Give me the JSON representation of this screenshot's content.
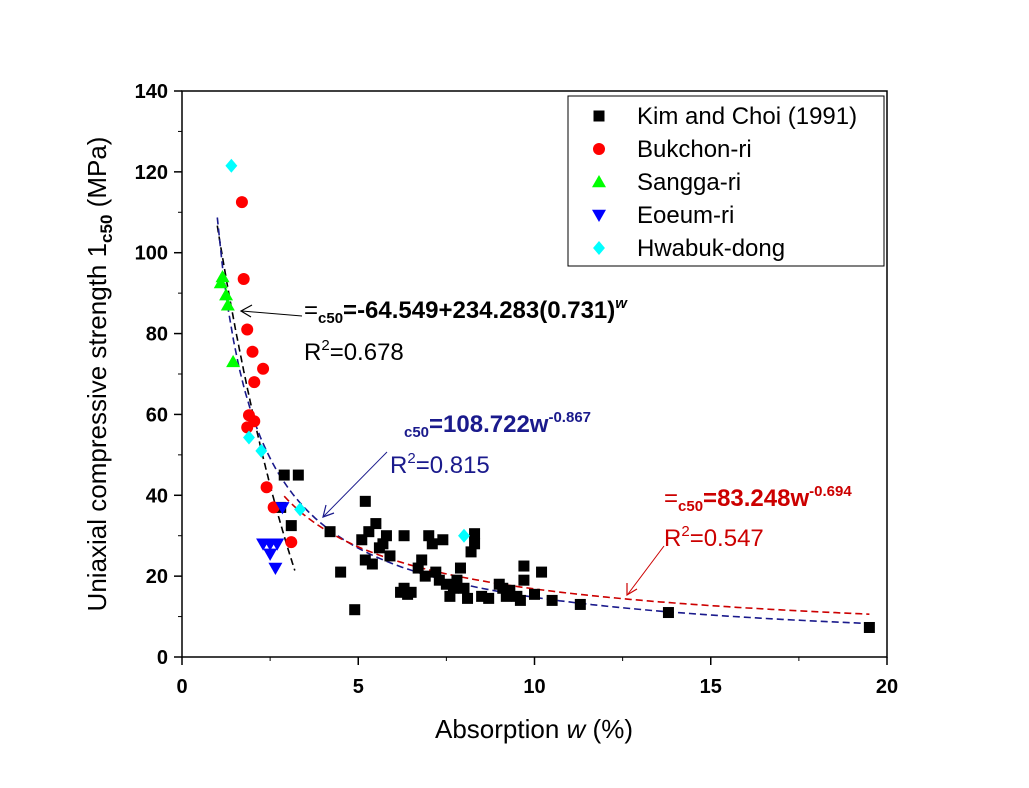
{
  "chart_data": {
    "type": "scatter",
    "xlabel_main": "Absorption ",
    "xlabel_var": "w",
    "xlabel_unit": " (%)",
    "ylabel_main": "Uniaxial compressive strength 1",
    "ylabel_sub": "c50",
    "ylabel_unit": " (MPa)",
    "xlim": [
      0,
      20
    ],
    "ylim": [
      0,
      140
    ],
    "x_ticks": [
      0,
      5,
      10,
      15,
      20
    ],
    "y_ticks": [
      0,
      20,
      40,
      60,
      80,
      100,
      120,
      140
    ],
    "grid": false,
    "legend_position": "top-right",
    "series": [
      {
        "name": "Kim and Choi (1991)",
        "marker": "square",
        "color": "#000000",
        "points": [
          [
            2.9,
            45
          ],
          [
            3.3,
            45
          ],
          [
            3.1,
            32.5
          ],
          [
            2.8,
            37
          ],
          [
            4.2,
            31
          ],
          [
            4.5,
            21
          ],
          [
            4.9,
            11.7
          ],
          [
            5.1,
            29
          ],
          [
            5.2,
            38.5
          ],
          [
            5.3,
            31
          ],
          [
            5.2,
            24
          ],
          [
            5.4,
            23
          ],
          [
            5.5,
            33
          ],
          [
            5.6,
            27
          ],
          [
            5.7,
            28
          ],
          [
            5.8,
            30
          ],
          [
            5.9,
            25
          ],
          [
            6.2,
            16
          ],
          [
            6.3,
            17
          ],
          [
            6.4,
            15.5
          ],
          [
            6.5,
            16
          ],
          [
            6.3,
            30
          ],
          [
            6.7,
            22
          ],
          [
            6.8,
            24
          ],
          [
            6.9,
            20
          ],
          [
            7.0,
            30
          ],
          [
            7.1,
            28
          ],
          [
            7.2,
            21
          ],
          [
            7.3,
            19
          ],
          [
            7.4,
            29
          ],
          [
            7.5,
            18
          ],
          [
            7.6,
            15
          ],
          [
            7.7,
            17
          ],
          [
            7.8,
            19
          ],
          [
            7.9,
            22
          ],
          [
            8.0,
            17
          ],
          [
            8.1,
            14.5
          ],
          [
            8.2,
            26
          ],
          [
            8.3,
            28
          ],
          [
            8.3,
            30.5
          ],
          [
            8.5,
            15
          ],
          [
            8.7,
            14.5
          ],
          [
            9.0,
            18
          ],
          [
            9.1,
            17
          ],
          [
            9.2,
            15
          ],
          [
            9.3,
            16.5
          ],
          [
            9.5,
            15
          ],
          [
            9.6,
            14
          ],
          [
            9.7,
            19
          ],
          [
            9.7,
            22.5
          ],
          [
            10.0,
            15.5
          ],
          [
            10.2,
            21
          ],
          [
            10.5,
            14
          ],
          [
            11.3,
            13
          ],
          [
            13.8,
            11
          ],
          [
            19.5,
            7.3
          ]
        ]
      },
      {
        "name": "Bukchon-ri",
        "marker": "circle",
        "color": "#ff0000",
        "points": [
          [
            1.7,
            112.5
          ],
          [
            1.75,
            93.5
          ],
          [
            1.85,
            81
          ],
          [
            2.0,
            75.5
          ],
          [
            2.3,
            71.3
          ],
          [
            2.05,
            68
          ],
          [
            1.9,
            59.8
          ],
          [
            2.05,
            58.3
          ],
          [
            1.85,
            56.8
          ],
          [
            2.4,
            42
          ],
          [
            2.6,
            37
          ],
          [
            3.1,
            28.4
          ]
        ]
      },
      {
        "name": "Sangga-ri",
        "marker": "triangle-up",
        "color": "#00ff00",
        "points": [
          [
            1.1,
            92.5
          ],
          [
            1.15,
            94
          ],
          [
            1.25,
            89.5
          ],
          [
            1.3,
            87
          ],
          [
            1.45,
            73
          ]
        ]
      },
      {
        "name": "Eoeum-ri",
        "marker": "triangle-down",
        "color": "#0000ff",
        "points": [
          [
            2.3,
            28
          ],
          [
            2.5,
            28
          ],
          [
            2.7,
            28
          ],
          [
            2.5,
            25.5
          ],
          [
            2.65,
            22
          ],
          [
            2.85,
            37
          ]
        ]
      },
      {
        "name": "Hwabuk-dong",
        "marker": "diamond",
        "color": "#00ffff",
        "points": [
          [
            1.4,
            121.5
          ],
          [
            1.9,
            54.3
          ],
          [
            2.25,
            51
          ],
          [
            3.35,
            36.5
          ],
          [
            8.0,
            30
          ]
        ]
      }
    ],
    "fits": [
      {
        "name": "fit-black",
        "color": "#000000",
        "type": "exp",
        "a": -64.549,
        "b": 234.283,
        "c": 0.731,
        "x_range": [
          1.0,
          3.2
        ]
      },
      {
        "name": "fit-blue",
        "color": "#1a1a8c",
        "type": "power",
        "a": 108.722,
        "b": -0.867,
        "x_range": [
          1.0,
          19.5
        ]
      },
      {
        "name": "fit-red",
        "color": "#cc0000",
        "type": "power",
        "a": 83.248,
        "b": -0.694,
        "x_range": [
          2.9,
          19.5
        ]
      }
    ],
    "annotations": [
      {
        "name": "eq-black",
        "color": "#000000",
        "prefix": "=",
        "sub": "c50",
        "body": "=-64.549+234.283(0.731)",
        "sup": "w",
        "r2_prefix": "R",
        "r2_sup": "2",
        "r2_val": "=0.678"
      },
      {
        "name": "eq-blue",
        "color": "#1a1a8c",
        "prefix": "",
        "sub": "c50",
        "body": "=108.722w",
        "sup": "-0.867",
        "r2_prefix": "R",
        "r2_sup": "2",
        "r2_val": "=0.815"
      },
      {
        "name": "eq-red",
        "color": "#cc0000",
        "prefix": "=",
        "sub": "c50",
        "body": "=83.248w",
        "sup": "-0.694",
        "r2_prefix": "R",
        "r2_sup": "2",
        "r2_val": "=0.547"
      }
    ]
  }
}
